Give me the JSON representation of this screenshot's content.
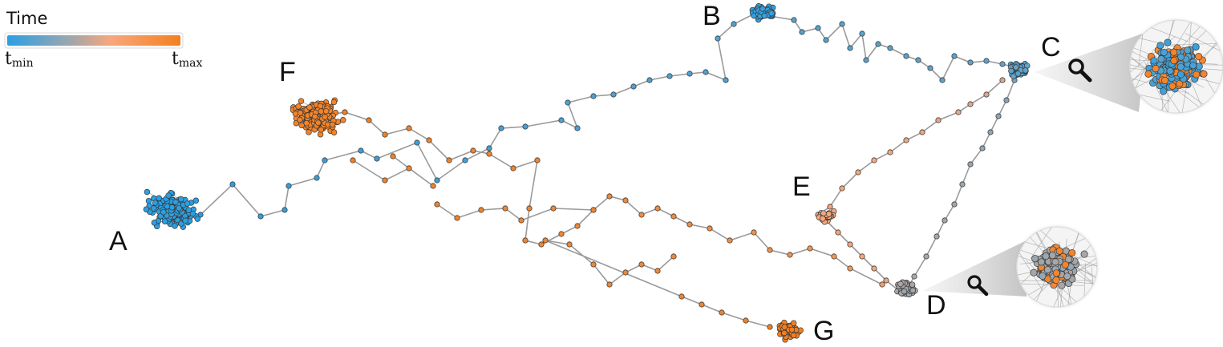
{
  "legend": {
    "title": "Time",
    "min_label": "t",
    "min_sub": "min",
    "max_label": "t",
    "max_sub": "max",
    "colors": [
      "#2a9fe3",
      "#9aa6b0",
      "#f7a77b",
      "#f47f1f"
    ]
  },
  "clusters": [
    {
      "label": "A",
      "time": 0.0
    },
    {
      "label": "B",
      "time": 0.02
    },
    {
      "label": "C",
      "time": 0.12
    },
    {
      "label": "D",
      "time": 0.35
    },
    {
      "label": "E",
      "time": 0.6
    },
    {
      "label": "F",
      "time": 0.95
    },
    {
      "label": "G",
      "time": 1.0
    }
  ],
  "zoom_icons": [
    "magnifier-icon",
    "magnifier-icon"
  ]
}
